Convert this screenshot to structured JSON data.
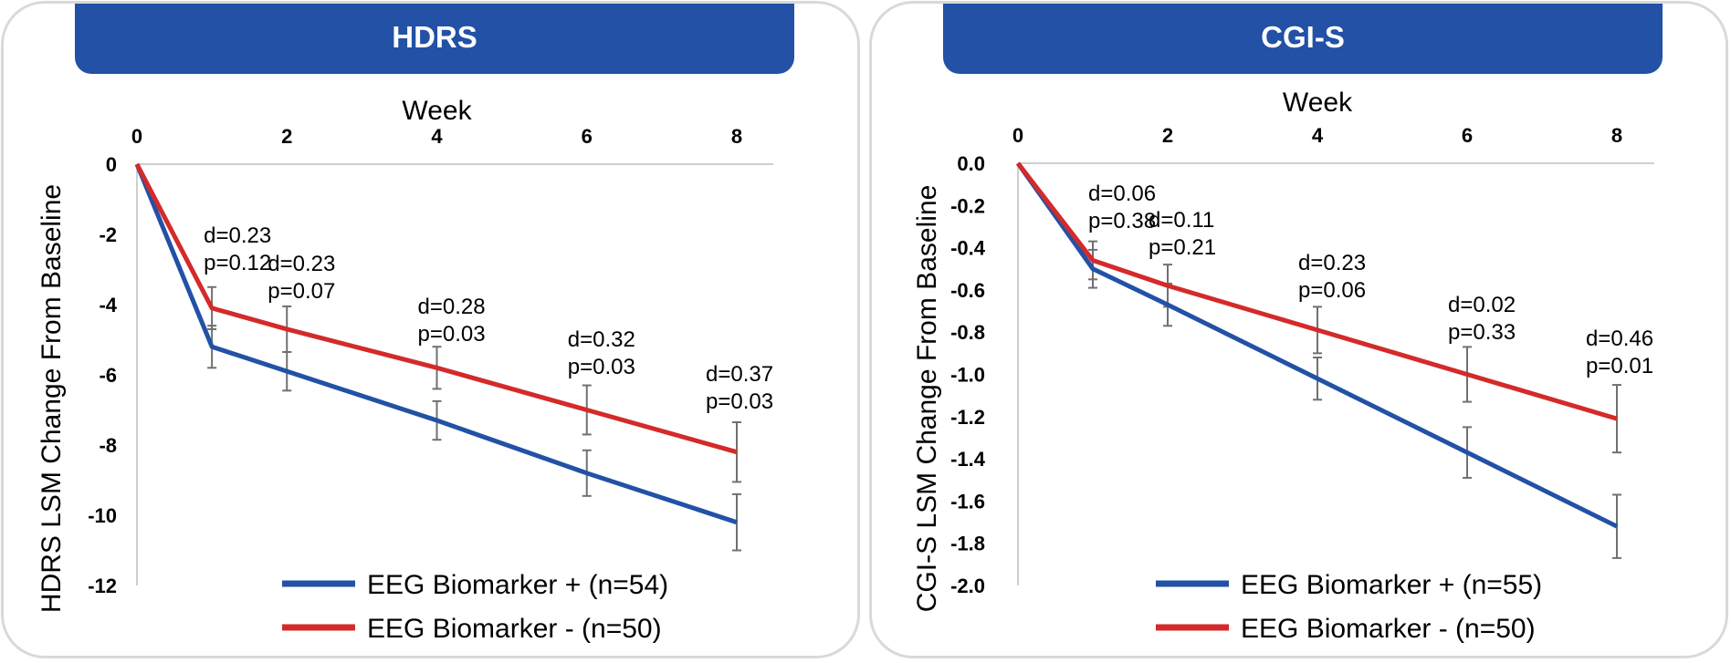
{
  "chart_data": [
    {
      "type": "line",
      "title": "HDRS",
      "xlabel": "Week",
      "ylabel": "HDRS LSM Change From Baseline",
      "x_ticks": [
        "0",
        "2",
        "4",
        "6",
        "8"
      ],
      "y_ticks": [
        "0",
        "-2",
        "-4",
        "-6",
        "-8",
        "-10",
        "-12"
      ],
      "xlim": [
        0,
        8
      ],
      "ylim": [
        -12,
        0
      ],
      "x": [
        0,
        1,
        2,
        4,
        6,
        8
      ],
      "series": [
        {
          "name": "EEG Biomarker + (n=54)",
          "color": "#2251a6",
          "values": [
            0,
            -5.2,
            -5.9,
            -7.3,
            -8.8,
            -10.2
          ],
          "error": [
            0,
            0.6,
            0.55,
            0.55,
            0.65,
            0.8
          ]
        },
        {
          "name": "EEG Biomarker - (n=50)",
          "color": "#d42a2a",
          "values": [
            0,
            -4.1,
            -4.7,
            -5.8,
            -7.0,
            -8.2
          ],
          "error": [
            0,
            0.6,
            0.65,
            0.6,
            0.7,
            0.85
          ]
        }
      ],
      "annotations": [
        {
          "x": 1,
          "d": "d=0.23",
          "p": "p=0.12"
        },
        {
          "x": 2,
          "d": "d=0.23",
          "p": "p=0.07"
        },
        {
          "x": 4,
          "d": "d=0.28",
          "p": "p=0.03"
        },
        {
          "x": 6,
          "d": "d=0.32",
          "p": "p=0.03"
        },
        {
          "x": 8,
          "d": "d=0.37",
          "p": "p=0.03"
        }
      ],
      "legend_position": "bottom-center"
    },
    {
      "type": "line",
      "title": "CGI-S",
      "xlabel": "Week",
      "ylabel": "CGI-S LSM Change From Baseline",
      "x_ticks": [
        "0",
        "2",
        "4",
        "6",
        "8"
      ],
      "y_ticks": [
        "0.0",
        "-0.2",
        "-0.4",
        "-0.6",
        "-0.8",
        "-1.0",
        "-1.2",
        "-1.4",
        "-1.6",
        "-1.8",
        "-2.0"
      ],
      "xlim": [
        0,
        8
      ],
      "ylim": [
        -2.0,
        0
      ],
      "x": [
        0,
        1,
        2,
        4,
        6,
        8
      ],
      "series": [
        {
          "name": "EEG Biomarker + (n=55)",
          "color": "#2251a6",
          "values": [
            0,
            -0.5,
            -0.67,
            -1.02,
            -1.37,
            -1.72
          ],
          "error": [
            0,
            0.09,
            0.1,
            0.1,
            0.12,
            0.15
          ]
        },
        {
          "name": "EEG Biomarker - (n=50)",
          "color": "#d42a2a",
          "values": [
            0,
            -0.46,
            -0.58,
            -0.79,
            -1.0,
            -1.21
          ],
          "error": [
            0,
            0.09,
            0.1,
            0.11,
            0.13,
            0.16
          ]
        }
      ],
      "annotations": [
        {
          "x": 1,
          "d": "d=0.06",
          "p": "p=0.38"
        },
        {
          "x": 2,
          "d": "d=0.11",
          "p": "p=0.21"
        },
        {
          "x": 4,
          "d": "d=0.23",
          "p": "p=0.06"
        },
        {
          "x": 6,
          "d": "d=0.02",
          "p": "p=0.33"
        },
        {
          "x": 8,
          "d": "d=0.46",
          "p": "p=0.01"
        }
      ],
      "legend_position": "bottom-center"
    }
  ]
}
